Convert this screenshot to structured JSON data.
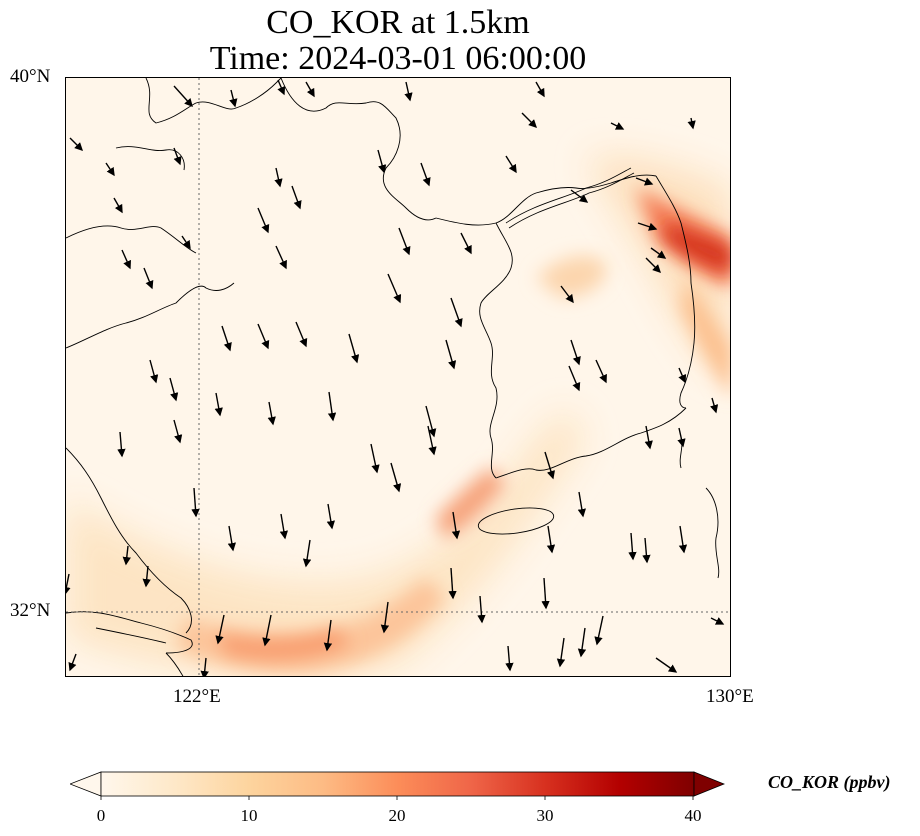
{
  "title": {
    "line1": "CO_KOR at 1.5km",
    "line2": "Time: 2024-03-01 06:00:00"
  },
  "axes": {
    "lat_labels": [
      "40°N",
      "32°N"
    ],
    "lon_labels": [
      "122°E",
      "130°E"
    ]
  },
  "colorbar": {
    "label": "CO_KOR (ppbv)",
    "ticks": [
      "0",
      "10",
      "20",
      "30",
      "40"
    ],
    "vmin": 0,
    "vmax": 40,
    "extend": "both",
    "colormap": "OrRd",
    "colors": [
      "#fff7ec",
      "#fee8c8",
      "#fdd49e",
      "#fdbb84",
      "#fc8d59",
      "#ef6548",
      "#d7301f",
      "#b30000",
      "#7f0000"
    ]
  },
  "map": {
    "lon_range": [
      120,
      130
    ],
    "lat_range": [
      31,
      40
    ],
    "gridlines": {
      "lon": [
        122
      ],
      "lat": [
        32
      ],
      "style": "dotted"
    },
    "plumes": [
      {
        "name": "north-plume",
        "peak_ppbv": 32
      },
      {
        "name": "south-plume",
        "peak_ppbv": 20
      },
      {
        "name": "central-plume",
        "peak_ppbv": 18
      },
      {
        "name": "korea-inland",
        "peak_ppbv": 10
      }
    ],
    "wind_field": "black quiver arrows, predominantly north-to-south flow"
  }
}
